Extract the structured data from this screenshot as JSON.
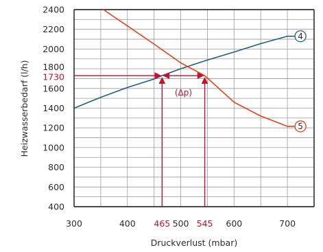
{
  "chart_data": {
    "type": "line",
    "xlabel": "Druckverlust (mbar)",
    "ylabel": "Heizwasserbedarf (l/h)",
    "xlim": [
      300,
      750
    ],
    "ylim": [
      400,
      2400
    ],
    "x_ticks": [
      300,
      400,
      500,
      600,
      700
    ],
    "y_ticks": [
      400,
      600,
      800,
      1000,
      1200,
      1400,
      1600,
      1800,
      2000,
      2200,
      2400
    ],
    "grid": true,
    "series": [
      {
        "name": "4",
        "color": "#1f5f78",
        "x": [
          300,
          350,
          400,
          450,
          465,
          500,
          545,
          600,
          650,
          700
        ],
        "y": [
          1400,
          1510,
          1610,
          1695,
          1730,
          1800,
          1880,
          1970,
          2055,
          2130
        ]
      },
      {
        "name": "5",
        "color": "#e8401c",
        "x": [
          355,
          400,
          450,
          500,
          545,
          600,
          650,
          700
        ],
        "y": [
          2400,
          2235,
          2050,
          1860,
          1730,
          1460,
          1320,
          1215
        ]
      }
    ],
    "annotations": {
      "highlight_color": "#c8102e",
      "y_marker": {
        "value": 1730,
        "label": "1730"
      },
      "x_markers": [
        {
          "value": 465,
          "label": "465"
        },
        {
          "value": 545,
          "label": "545"
        }
      ],
      "delta_label": "(Δp)"
    }
  }
}
